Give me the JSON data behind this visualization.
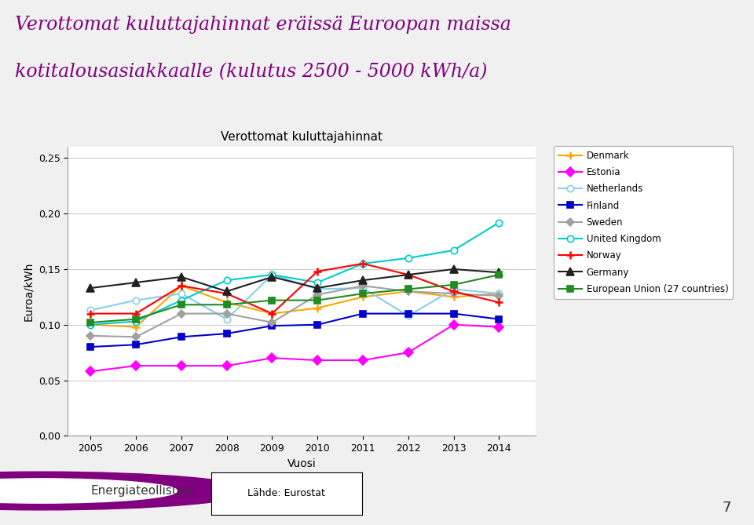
{
  "title_main_line1": "Verottomat kuluttajahinnat eräissä Euroopan maissa",
  "title_main_line2": "kotitalousasiakkaalle (kulutus 2500 - 5000 kWh/a)",
  "chart_title": "Verottomat kuluttajahinnat",
  "xlabel": "Vuosi",
  "ylabel": "Euroa/kWh",
  "years": [
    2005,
    2006,
    2007,
    2008,
    2009,
    2010,
    2011,
    2012,
    2013,
    2014
  ],
  "series": {
    "Denmark": [
      0.1,
      0.098,
      0.135,
      0.12,
      0.11,
      0.115,
      0.125,
      0.13,
      0.125,
      0.128
    ],
    "Estonia": [
      0.058,
      0.063,
      0.063,
      0.063,
      0.07,
      0.068,
      0.068,
      0.075,
      0.1,
      0.098
    ],
    "Netherlands": [
      0.113,
      0.122,
      0.128,
      0.105,
      0.145,
      0.132,
      0.133,
      0.108,
      0.132,
      0.128
    ],
    "Finland": [
      0.08,
      0.082,
      0.089,
      0.092,
      0.099,
      0.1,
      0.11,
      0.11,
      0.11,
      0.105
    ],
    "Sweden": [
      0.09,
      0.089,
      0.11,
      0.11,
      0.102,
      0.127,
      0.135,
      0.13,
      0.128,
      0.126
    ],
    "United Kingdom": [
      0.1,
      0.103,
      0.122,
      0.14,
      0.145,
      0.138,
      0.155,
      0.16,
      0.167,
      0.192
    ],
    "Norway": [
      0.11,
      0.11,
      0.135,
      0.128,
      0.11,
      0.148,
      0.155,
      0.145,
      0.13,
      0.12
    ],
    "Germany": [
      0.133,
      0.138,
      0.143,
      0.13,
      0.143,
      0.133,
      0.14,
      0.145,
      0.15,
      0.147
    ],
    "European Union (27 countries)": [
      0.102,
      0.105,
      0.118,
      0.118,
      0.122,
      0.122,
      0.128,
      0.132,
      0.136,
      0.145
    ]
  },
  "colors": {
    "Denmark": "#FFA500",
    "Estonia": "#FF00FF",
    "Netherlands": "#87CEEB",
    "Finland": "#0000CD",
    "Sweden": "#A0A0A0",
    "United Kingdom": "#00CCCC",
    "Norway": "#FF0000",
    "Germany": "#202020",
    "European Union (27 countries)": "#228B22"
  },
  "ylim": [
    0.0,
    0.26
  ],
  "yticks": [
    0.0,
    0.05,
    0.1,
    0.15,
    0.2,
    0.25
  ],
  "ytick_labels": [
    "0,00",
    "0,05",
    "0,10",
    "0,15",
    "0,20",
    "0,25"
  ],
  "source_text": "Lähde: Eurostat",
  "page_number": "7",
  "background_color": "#F0F0F0",
  "plot_bg_color": "#FFFFFF",
  "title_color": "#800080"
}
